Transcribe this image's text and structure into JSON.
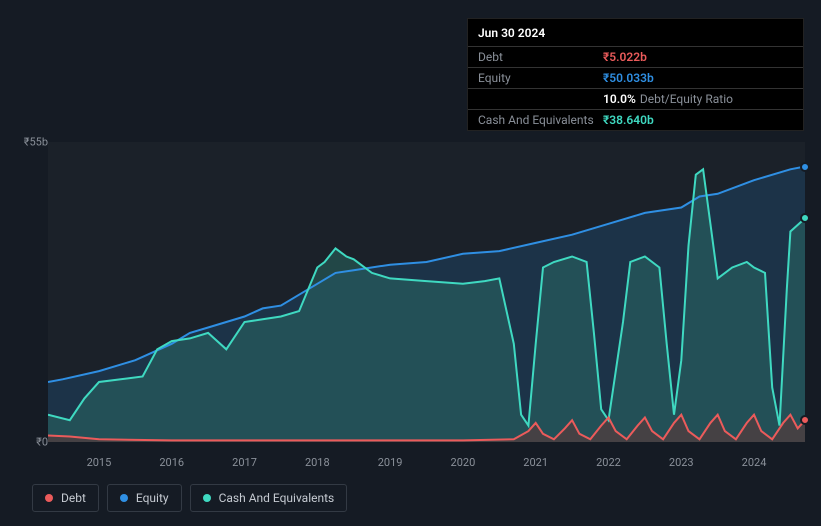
{
  "tooltip": {
    "date": "Jun 30 2024",
    "rows": [
      {
        "label": "Debt",
        "value": "₹5.022b",
        "color": "#eb5b5b"
      },
      {
        "label": "Equity",
        "value": "₹50.033b",
        "color": "#2f8fe3"
      },
      {
        "label": "",
        "value": "10.0%",
        "sub": "Debt/Equity Ratio",
        "color": "#ffffff"
      },
      {
        "label": "Cash And Equivalents",
        "value": "₹38.640b",
        "color": "#3fd9c1"
      }
    ]
  },
  "chart": {
    "type": "area-line",
    "background_color": "#1b2129",
    "page_background": "#151b24",
    "ylim": [
      0,
      55
    ],
    "y_ticks": [
      {
        "v": 0,
        "label": "₹0"
      },
      {
        "v": 55,
        "label": "₹55b"
      }
    ],
    "x_ticks": [
      "2015",
      "2016",
      "2017",
      "2018",
      "2019",
      "2020",
      "2021",
      "2022",
      "2023",
      "2024"
    ],
    "x_domain": [
      2014.3,
      2024.7
    ],
    "series": {
      "equity": {
        "color": "#2f8fe3",
        "fill": "#1f4a6e",
        "fill_opacity": 0.45,
        "line_width": 2,
        "data": [
          [
            2014.3,
            11
          ],
          [
            2014.5,
            11.5
          ],
          [
            2015,
            13
          ],
          [
            2015.5,
            15
          ],
          [
            2016,
            18
          ],
          [
            2016.25,
            20
          ],
          [
            2016.5,
            21
          ],
          [
            2017,
            23
          ],
          [
            2017.25,
            24.5
          ],
          [
            2017.5,
            25
          ],
          [
            2017.75,
            27
          ],
          [
            2018,
            29
          ],
          [
            2018.25,
            31
          ],
          [
            2018.5,
            31.5
          ],
          [
            2019,
            32.5
          ],
          [
            2019.5,
            33
          ],
          [
            2020,
            34.5
          ],
          [
            2020.5,
            35
          ],
          [
            2021,
            36.5
          ],
          [
            2021.5,
            38
          ],
          [
            2022,
            40
          ],
          [
            2022.5,
            42
          ],
          [
            2023,
            43
          ],
          [
            2023.25,
            45
          ],
          [
            2023.5,
            45.5
          ],
          [
            2024,
            48
          ],
          [
            2024.5,
            50
          ],
          [
            2024.7,
            50.5
          ]
        ]
      },
      "cash": {
        "color": "#3fd9c1",
        "fill": "#2a6e66",
        "fill_opacity": 0.5,
        "line_width": 2,
        "data": [
          [
            2014.3,
            5
          ],
          [
            2014.6,
            4
          ],
          [
            2014.8,
            8
          ],
          [
            2015,
            11
          ],
          [
            2015.3,
            11.5
          ],
          [
            2015.6,
            12
          ],
          [
            2015.8,
            17
          ],
          [
            2016,
            18.5
          ],
          [
            2016.25,
            19
          ],
          [
            2016.5,
            20
          ],
          [
            2016.75,
            17
          ],
          [
            2017,
            22
          ],
          [
            2017.25,
            22.5
          ],
          [
            2017.5,
            23
          ],
          [
            2017.75,
            24
          ],
          [
            2018,
            32
          ],
          [
            2018.1,
            33
          ],
          [
            2018.25,
            35.5
          ],
          [
            2018.4,
            34
          ],
          [
            2018.5,
            33.5
          ],
          [
            2018.75,
            31
          ],
          [
            2019,
            30
          ],
          [
            2019.5,
            29.5
          ],
          [
            2020,
            29
          ],
          [
            2020.3,
            29.5
          ],
          [
            2020.5,
            30
          ],
          [
            2020.7,
            18
          ],
          [
            2020.8,
            5
          ],
          [
            2020.9,
            3
          ],
          [
            2021,
            18
          ],
          [
            2021.1,
            32
          ],
          [
            2021.25,
            33
          ],
          [
            2021.5,
            34
          ],
          [
            2021.7,
            33
          ],
          [
            2021.8,
            20
          ],
          [
            2021.9,
            6
          ],
          [
            2022,
            4
          ],
          [
            2022.2,
            22
          ],
          [
            2022.3,
            33
          ],
          [
            2022.5,
            34
          ],
          [
            2022.7,
            32
          ],
          [
            2022.8,
            18
          ],
          [
            2022.9,
            5
          ],
          [
            2023,
            15
          ],
          [
            2023.1,
            36
          ],
          [
            2023.2,
            49
          ],
          [
            2023.3,
            50
          ],
          [
            2023.4,
            40
          ],
          [
            2023.5,
            30
          ],
          [
            2023.7,
            32
          ],
          [
            2023.9,
            33
          ],
          [
            2024,
            32
          ],
          [
            2024.15,
            31
          ],
          [
            2024.25,
            10
          ],
          [
            2024.35,
            3
          ],
          [
            2024.45,
            28
          ],
          [
            2024.5,
            38.6
          ],
          [
            2024.7,
            41
          ]
        ]
      },
      "debt": {
        "color": "#eb5b5b",
        "fill": "#6e2f2f",
        "fill_opacity": 0.45,
        "line_width": 2,
        "data": [
          [
            2014.3,
            1.2
          ],
          [
            2014.6,
            1
          ],
          [
            2015,
            0.5
          ],
          [
            2016,
            0.3
          ],
          [
            2017,
            0.3
          ],
          [
            2018,
            0.3
          ],
          [
            2019,
            0.3
          ],
          [
            2020,
            0.3
          ],
          [
            2020.7,
            0.5
          ],
          [
            2020.9,
            2
          ],
          [
            2021,
            3.5
          ],
          [
            2021.1,
            1.5
          ],
          [
            2021.25,
            0.5
          ],
          [
            2021.4,
            2.5
          ],
          [
            2021.5,
            4
          ],
          [
            2021.6,
            1.5
          ],
          [
            2021.75,
            0.5
          ],
          [
            2021.9,
            3
          ],
          [
            2022,
            4.5
          ],
          [
            2022.1,
            2
          ],
          [
            2022.25,
            0.5
          ],
          [
            2022.4,
            3
          ],
          [
            2022.5,
            4.5
          ],
          [
            2022.6,
            2
          ],
          [
            2022.75,
            0.5
          ],
          [
            2022.9,
            3.5
          ],
          [
            2023,
            5
          ],
          [
            2023.1,
            2
          ],
          [
            2023.25,
            0.5
          ],
          [
            2023.4,
            3.5
          ],
          [
            2023.5,
            5
          ],
          [
            2023.6,
            2
          ],
          [
            2023.75,
            0.5
          ],
          [
            2023.9,
            3.5
          ],
          [
            2024,
            5
          ],
          [
            2024.1,
            2
          ],
          [
            2024.25,
            0.5
          ],
          [
            2024.4,
            3.5
          ],
          [
            2024.5,
            5
          ],
          [
            2024.6,
            2.5
          ],
          [
            2024.7,
            4
          ]
        ]
      }
    },
    "end_markers": [
      {
        "series": "equity",
        "color": "#2f8fe3"
      },
      {
        "series": "cash",
        "color": "#3fd9c1"
      },
      {
        "series": "debt",
        "color": "#eb5b5b"
      }
    ]
  },
  "legend": [
    {
      "label": "Debt",
      "color": "#eb5b5b"
    },
    {
      "label": "Equity",
      "color": "#2f8fe3"
    },
    {
      "label": "Cash And Equivalents",
      "color": "#3fd9c1"
    }
  ]
}
